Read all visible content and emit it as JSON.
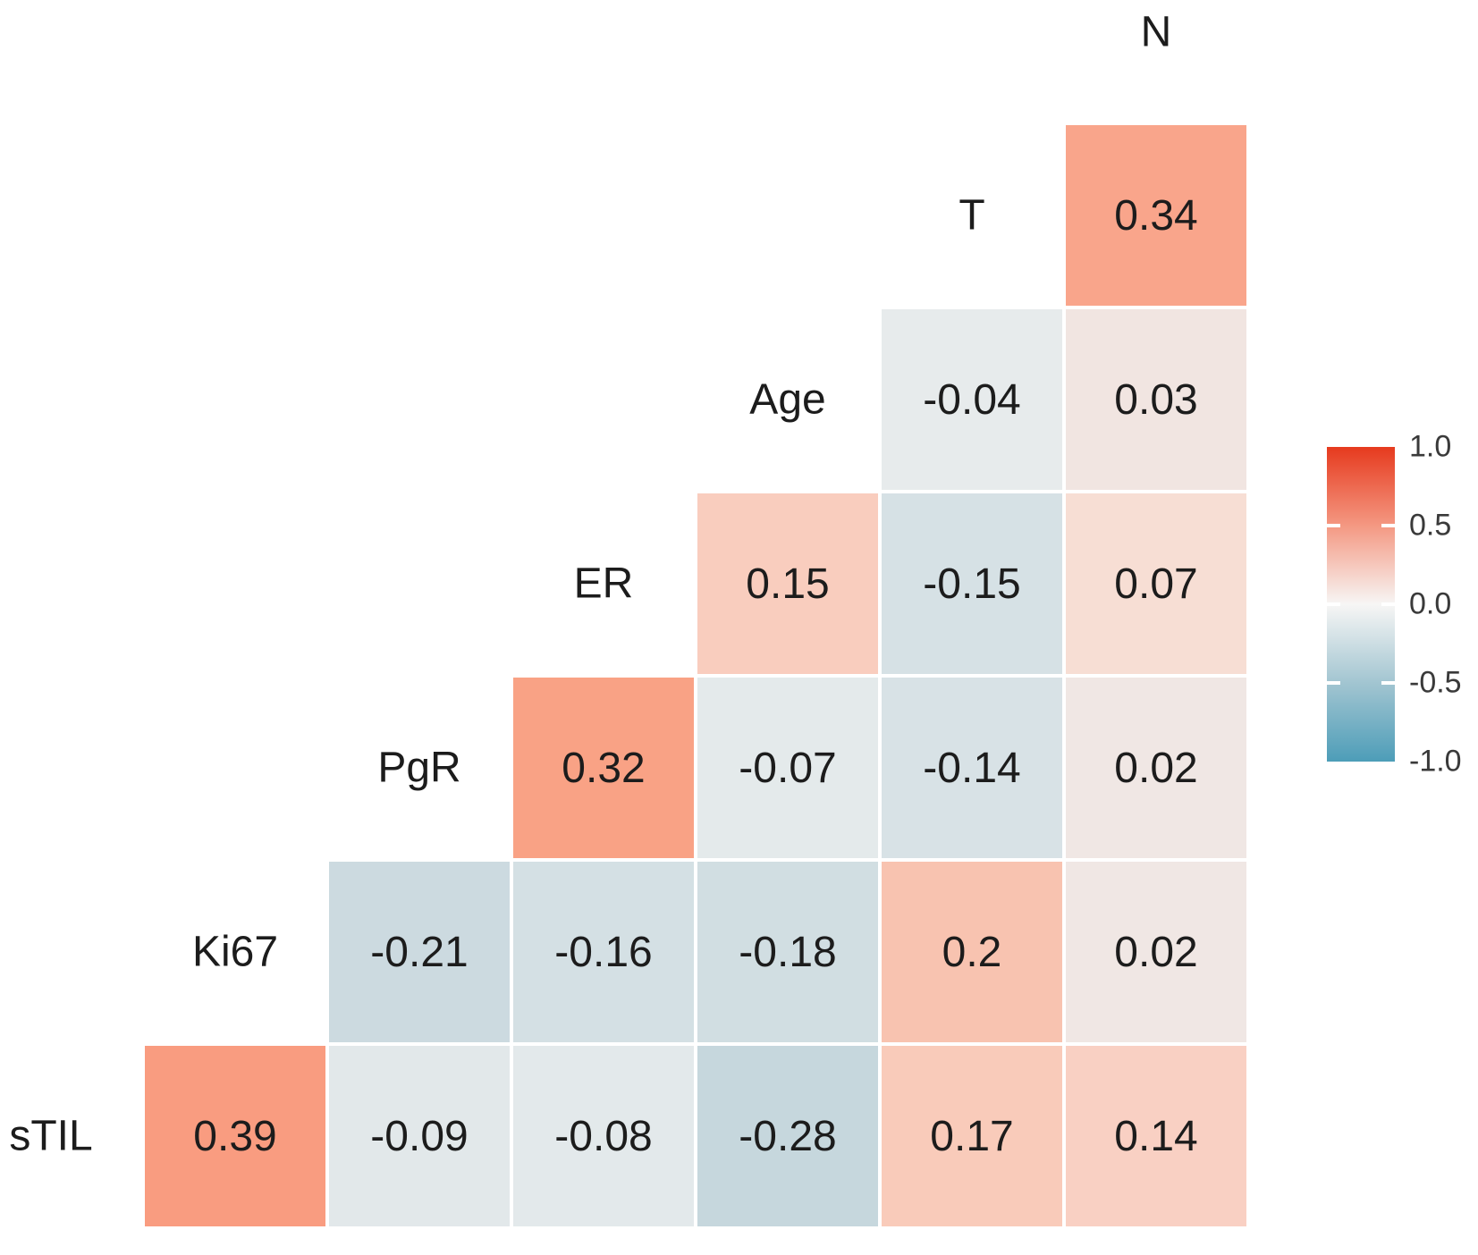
{
  "figure": {
    "background": "#FFFFFF",
    "text_color": "#1C1C1C"
  },
  "chart_data": {
    "type": "heatmap",
    "subtype": "correlation-matrix-lower-triangle",
    "title": "",
    "variables": [
      "sTIL",
      "Ki67",
      "PgR",
      "ER",
      "Age",
      "T",
      "N"
    ],
    "column_order_left_to_right": [
      "Ki67",
      "PgR",
      "ER",
      "Age",
      "T",
      "N"
    ],
    "row_order_top_to_bottom": [
      "T",
      "Age",
      "ER",
      "PgR",
      "Ki67",
      "sTIL"
    ],
    "top_axis_label": "N",
    "matrix": [
      {
        "label": "T",
        "cells": [
          {
            "col": 5,
            "v": 0.34
          }
        ]
      },
      {
        "label": "Age",
        "cells": [
          {
            "col": 4,
            "v": -0.04
          },
          {
            "col": 5,
            "v": 0.03
          }
        ]
      },
      {
        "label": "ER",
        "cells": [
          {
            "col": 3,
            "v": 0.15
          },
          {
            "col": 4,
            "v": -0.15
          },
          {
            "col": 5,
            "v": 0.07
          }
        ]
      },
      {
        "label": "PgR",
        "cells": [
          {
            "col": 2,
            "v": 0.32
          },
          {
            "col": 3,
            "v": -0.07
          },
          {
            "col": 4,
            "v": -0.14
          },
          {
            "col": 5,
            "v": 0.02
          }
        ]
      },
      {
        "label": "Ki67",
        "cells": [
          {
            "col": 1,
            "v": -0.21
          },
          {
            "col": 2,
            "v": -0.16
          },
          {
            "col": 3,
            "v": -0.18
          },
          {
            "col": 4,
            "v": 0.2
          },
          {
            "col": 5,
            "v": 0.02
          }
        ]
      },
      {
        "label": "sTIL",
        "cells": [
          {
            "col": 0,
            "v": 0.39
          },
          {
            "col": 1,
            "v": -0.09
          },
          {
            "col": 2,
            "v": -0.08
          },
          {
            "col": 3,
            "v": -0.28
          },
          {
            "col": 4,
            "v": 0.17
          },
          {
            "col": 5,
            "v": 0.14
          }
        ]
      }
    ],
    "value_colors": {
      "0.39": "#F99C80",
      "0.34": "#F9A58B",
      "0.32": "#F9A285",
      "0.2": "#F8C3B0",
      "0.17": "#F9CBBA",
      "0.15": "#F9CDBE",
      "0.14": "#F9D0C3",
      "0.07": "#F7DED4",
      "0.03": "#F1E5E1",
      "0.02": "#F0E7E4",
      "-0.04": "#E7EBEC",
      "-0.07": "#E4EAEB",
      "-0.08": "#E3E9EB",
      "-0.09": "#E2E8EA",
      "-0.14": "#D8E2E6",
      "-0.15": "#D6E1E5",
      "-0.16": "#D4E0E4",
      "-0.18": "#D1DEE2",
      "-0.21": "#CCDAE0",
      "-0.28": "#C6D7DD"
    },
    "cell_border_color": "#FFFFFF",
    "legend": {
      "range": [
        -1.0,
        1.0
      ],
      "tick_labels": [
        "1.0",
        "0.5",
        "0.0",
        "-0.5",
        "-1.0"
      ],
      "tick_positions": [
        0,
        0.25,
        0.5,
        0.75,
        1
      ],
      "gradient_stops": [
        {
          "pos": 0,
          "color": "#E63A1E"
        },
        {
          "pos": 0.25,
          "color": "#F49882"
        },
        {
          "pos": 0.5,
          "color": "#F7F6F5"
        },
        {
          "pos": 0.75,
          "color": "#A2C5D1"
        },
        {
          "pos": 1,
          "color": "#4D9DB8"
        }
      ],
      "tick_mark_color": "#FFFFFF",
      "label_color": "#3A3A3A"
    }
  }
}
